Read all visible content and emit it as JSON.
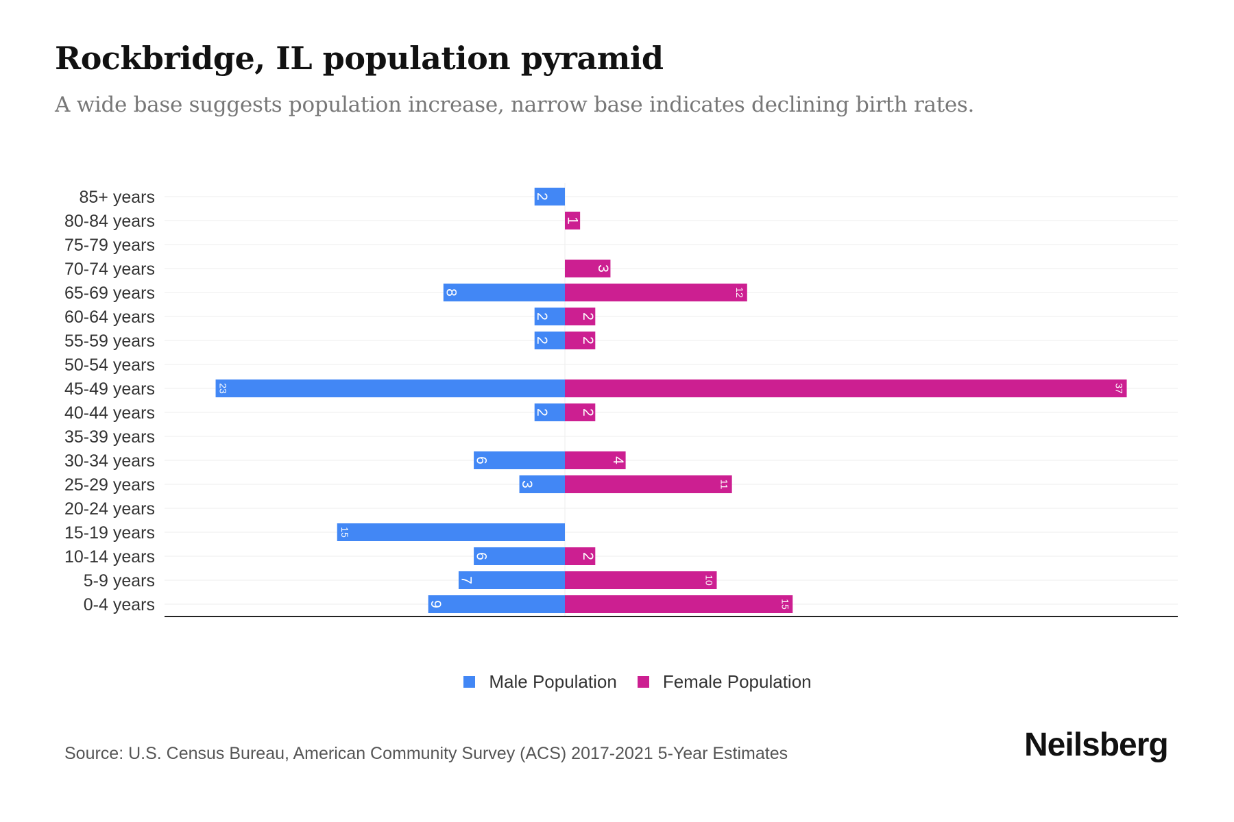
{
  "title": "Rockbridge, IL population pyramid",
  "subtitle": "A wide base suggests population increase, narrow base indicates declining birth rates.",
  "source": "Source: U.S. Census Bureau, American Community Survey (ACS) 2017-2021 5-Year Estimates",
  "logo": "Neilsberg",
  "colors": {
    "male": "#4287f5",
    "female": "#cc1f91"
  },
  "chart_data": {
    "type": "bar",
    "orientation": "horizontal-pyramid",
    "categories": [
      "85+ years",
      "80-84 years",
      "75-79 years",
      "70-74 years",
      "65-69 years",
      "60-64 years",
      "55-59 years",
      "50-54 years",
      "45-49 years",
      "40-44 years",
      "35-39 years",
      "30-34 years",
      "25-29 years",
      "20-24 years",
      "15-19 years",
      "10-14 years",
      "5-9 years",
      "0-4 years"
    ],
    "series": [
      {
        "name": "Male Population",
        "values": [
          2,
          0,
          0,
          0,
          8,
          2,
          2,
          0,
          23,
          2,
          0,
          6,
          3,
          0,
          15,
          6,
          7,
          9
        ]
      },
      {
        "name": "Female Population",
        "values": [
          0,
          1,
          0,
          3,
          12,
          2,
          2,
          0,
          37,
          2,
          0,
          4,
          11,
          0,
          0,
          2,
          10,
          15
        ]
      }
    ],
    "legend": "bottom-center",
    "grid": true
  }
}
